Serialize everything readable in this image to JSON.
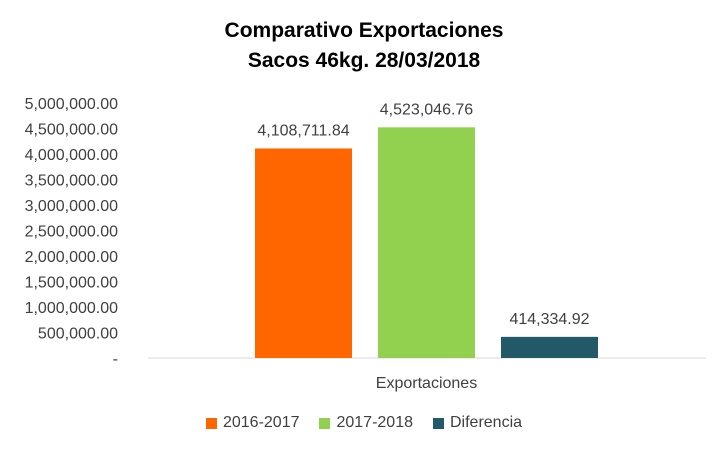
{
  "chart_data": {
    "type": "bar",
    "title": "Comparativo  Exportaciones",
    "subtitle": "Sacos 46kg. 28/03/2018",
    "categories": [
      "Exportaciones"
    ],
    "series": [
      {
        "name": "2016-2017",
        "values": [
          4108711.84
        ],
        "label": "4,108,711.84",
        "color": "#FF6600"
      },
      {
        "name": "2017-2018",
        "values": [
          4523046.76
        ],
        "label": "4,523,046.76",
        "color": "#92D050"
      },
      {
        "name": "Diferencia",
        "values": [
          414334.92
        ],
        "label": "414,334.92",
        "color": "#215968"
      }
    ],
    "ylim": [
      0,
      5000000
    ],
    "yticks": [
      0,
      500000,
      1000000,
      1500000,
      2000000,
      2500000,
      3000000,
      3500000,
      4000000,
      4500000,
      5000000
    ],
    "ytick_labels": [
      "-",
      "500,000.00",
      "1,000,000.00",
      "1,500,000.00",
      "2,000,000.00",
      "2,500,000.00",
      "3,000,000.00",
      "3,500,000.00",
      "4,000,000.00",
      "4,500,000.00",
      "5,000,000.00"
    ],
    "grid": false,
    "legend_position": "bottom"
  }
}
